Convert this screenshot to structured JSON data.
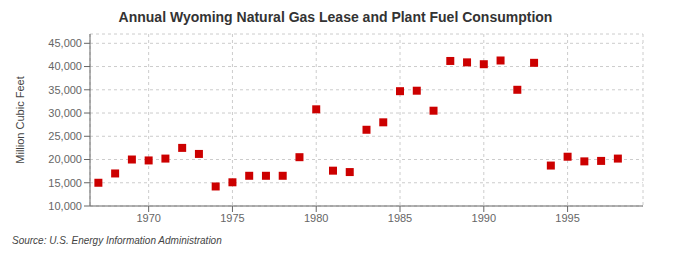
{
  "chart_data": {
    "type": "scatter",
    "title": "Annual Wyoming Natural Gas Lease and Plant Fuel Consumption",
    "ylabel": "Million Cubic Feet",
    "annotations": [
      "Source: U.S. Energy Information Administration"
    ],
    "x": [
      1967,
      1968,
      1969,
      1970,
      1971,
      1972,
      1973,
      1974,
      1975,
      1976,
      1977,
      1978,
      1979,
      1980,
      1981,
      1982,
      1983,
      1984,
      1985,
      1986,
      1987,
      1988,
      1989,
      1990,
      1991,
      1992,
      1993,
      1994,
      1995,
      1996,
      1997,
      1998
    ],
    "values": [
      15000,
      17000,
      20000,
      19800,
      20200,
      22500,
      21200,
      14200,
      15100,
      16500,
      16500,
      16500,
      20500,
      30800,
      17600,
      17300,
      26400,
      28000,
      34700,
      34800,
      30500,
      41200,
      40900,
      40500,
      41300,
      35000,
      40800,
      18700,
      20600,
      19600,
      19700,
      20200
    ],
    "color": "#cc0000",
    "marker": "square",
    "xlim": [
      1966.5,
      1999.5
    ],
    "ylim": [
      10000,
      47000
    ],
    "xticks": [
      1970,
      1975,
      1980,
      1985,
      1990,
      1995
    ],
    "yticks": [
      {
        "value": 10000,
        "label": "10,000"
      },
      {
        "value": 15000,
        "label": "15,000"
      },
      {
        "value": 20000,
        "label": "20,000"
      },
      {
        "value": 25000,
        "label": "25,000"
      },
      {
        "value": 30000,
        "label": "30,000"
      },
      {
        "value": 35000,
        "label": "35,000"
      },
      {
        "value": 40000,
        "label": "40,000"
      },
      {
        "value": 45000,
        "label": "45,000"
      }
    ],
    "grid": true
  }
}
